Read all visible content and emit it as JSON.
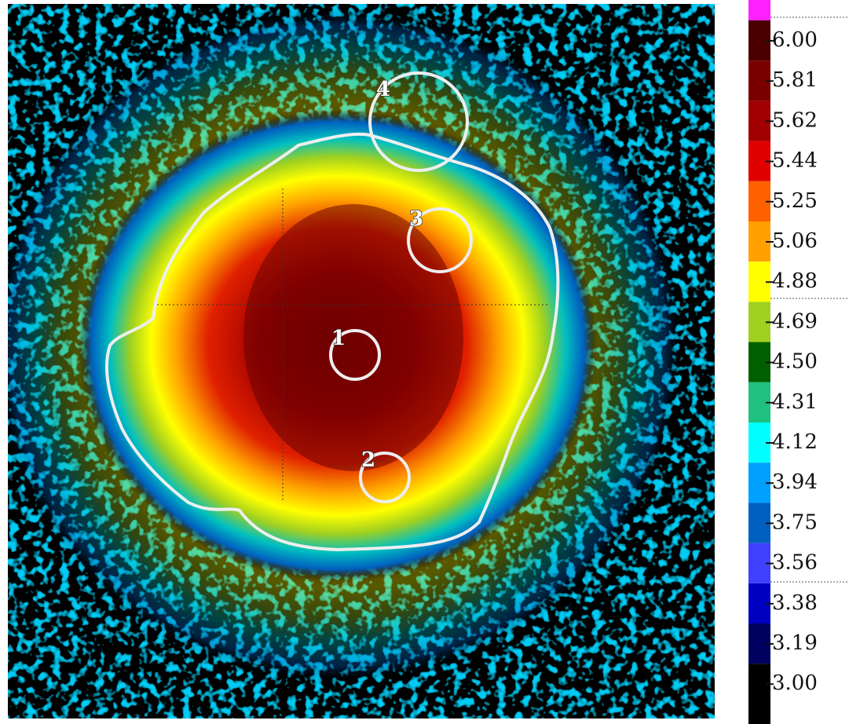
{
  "regions": [
    {
      "label": "1"
    },
    {
      "label": "2"
    },
    {
      "label": "3"
    },
    {
      "label": "4"
    }
  ],
  "colorbar": {
    "ticks": [
      "6.00",
      "5.81",
      "5.62",
      "5.44",
      "5.25",
      "5.06",
      "4.88",
      "4.69",
      "4.50",
      "4.31",
      "4.12",
      "3.94",
      "3.75",
      "3.56",
      "3.38",
      "3.19",
      "3.00"
    ]
  }
}
